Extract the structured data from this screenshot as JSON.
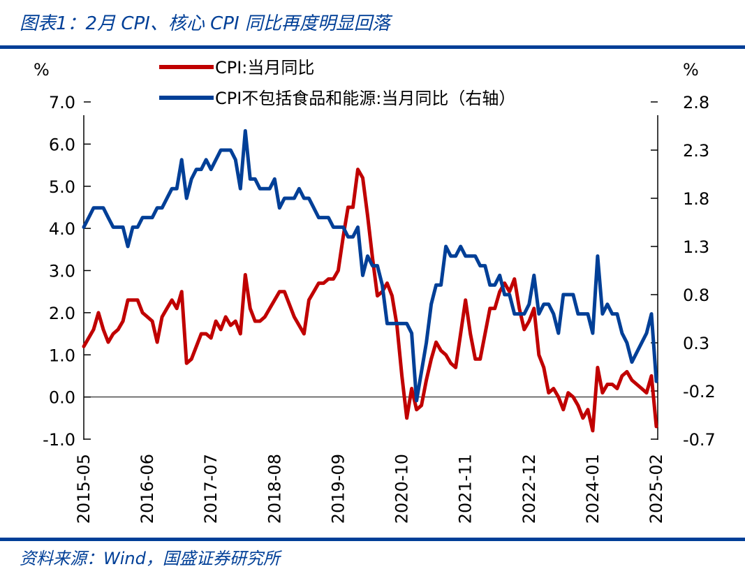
{
  "title": "图表1：2月 CPI、核心 CPI 同比再度明显回落",
  "source": "资料来源：Wind，国盛证券研究所",
  "colors": {
    "cpi": "#C00000",
    "core": "#003F97",
    "brand": "#003F97"
  },
  "chart_data": {
    "type": "line",
    "title": "图表1：2月 CPI、核心 CPI 同比再度明显回落",
    "left_axis": {
      "unit": "%",
      "range": [
        -1.0,
        7.0
      ],
      "ticks": [
        "7.0",
        "6.0",
        "5.0",
        "4.0",
        "3.0",
        "2.0",
        "1.0",
        "0.0",
        "-1.0"
      ]
    },
    "right_axis": {
      "unit": "%",
      "range": [
        -0.7,
        2.8
      ],
      "ticks": [
        "2.8",
        "2.3",
        "1.8",
        "1.3",
        "0.8",
        "0.3",
        "-0.2",
        "-0.7"
      ]
    },
    "x_start": "2015-05",
    "x_end": "2025-02",
    "x_tick_labels": [
      "2015-05",
      "2016-06",
      "2017-07",
      "2018-08",
      "2019-09",
      "2020-10",
      "2021-11",
      "2022-12",
      "2024-01",
      "2025-02"
    ],
    "grid": false,
    "legend_position": "top",
    "series": [
      {
        "name": "CPI:当月同比",
        "axis": "left",
        "color": "#C00000",
        "values": [
          1.2,
          1.4,
          1.6,
          2.0,
          1.6,
          1.3,
          1.5,
          1.6,
          1.8,
          2.3,
          2.3,
          2.3,
          2.0,
          1.9,
          1.8,
          1.3,
          1.9,
          2.1,
          2.3,
          2.1,
          2.5,
          0.8,
          0.9,
          1.2,
          1.5,
          1.5,
          1.4,
          1.8,
          1.6,
          1.9,
          1.7,
          1.8,
          1.5,
          2.9,
          2.1,
          1.8,
          1.8,
          1.9,
          2.1,
          2.3,
          2.5,
          2.5,
          2.2,
          1.9,
          1.7,
          1.5,
          2.3,
          2.5,
          2.7,
          2.7,
          2.8,
          2.8,
          3.0,
          3.8,
          4.5,
          4.5,
          5.4,
          5.2,
          4.3,
          3.3,
          2.4,
          2.5,
          2.7,
          2.4,
          1.7,
          0.5,
          -0.5,
          0.2,
          -0.3,
          -0.2,
          0.4,
          0.9,
          1.3,
          1.1,
          1.0,
          0.8,
          0.7,
          1.5,
          2.3,
          1.5,
          0.9,
          0.9,
          1.5,
          2.1,
          2.1,
          2.5,
          2.7,
          2.5,
          2.8,
          2.1,
          1.6,
          1.8,
          2.1,
          1.0,
          0.7,
          0.1,
          0.2,
          0.0,
          -0.3,
          0.1,
          0.0,
          -0.2,
          -0.5,
          -0.3,
          -0.8,
          0.7,
          0.1,
          0.3,
          0.3,
          0.2,
          0.5,
          0.6,
          0.4,
          0.3,
          0.2,
          0.1,
          0.5,
          -0.7
        ]
      },
      {
        "name": "CPI不包括食品和能源:当月同比（右轴）",
        "axis": "right",
        "color": "#003F97",
        "values": [
          1.5,
          1.6,
          1.7,
          1.7,
          1.7,
          1.6,
          1.5,
          1.5,
          1.5,
          1.3,
          1.5,
          1.5,
          1.6,
          1.6,
          1.6,
          1.7,
          1.7,
          1.8,
          1.9,
          1.9,
          2.2,
          1.8,
          2.0,
          2.1,
          2.1,
          2.2,
          2.1,
          2.2,
          2.3,
          2.3,
          2.3,
          2.2,
          1.9,
          2.5,
          2.0,
          2.0,
          1.9,
          1.9,
          1.9,
          2.0,
          1.7,
          1.8,
          1.8,
          1.8,
          1.9,
          1.8,
          1.8,
          1.7,
          1.6,
          1.6,
          1.6,
          1.5,
          1.5,
          1.5,
          1.4,
          1.4,
          1.5,
          1.0,
          1.2,
          1.1,
          1.1,
          0.9,
          0.5,
          0.5,
          0.5,
          0.5,
          0.5,
          0.4,
          -0.3,
          0.0,
          0.3,
          0.7,
          0.9,
          0.9,
          1.3,
          1.2,
          1.2,
          1.3,
          1.2,
          1.2,
          1.2,
          1.1,
          1.1,
          0.9,
          0.9,
          1.0,
          0.8,
          0.8,
          0.6,
          0.6,
          0.6,
          0.7,
          1.0,
          0.6,
          0.7,
          0.7,
          0.6,
          0.4,
          0.8,
          0.8,
          0.8,
          0.6,
          0.6,
          0.6,
          0.4,
          1.2,
          0.6,
          0.7,
          0.6,
          0.6,
          0.4,
          0.3,
          0.1,
          0.2,
          0.3,
          0.4,
          0.6,
          -0.1
        ]
      }
    ]
  }
}
